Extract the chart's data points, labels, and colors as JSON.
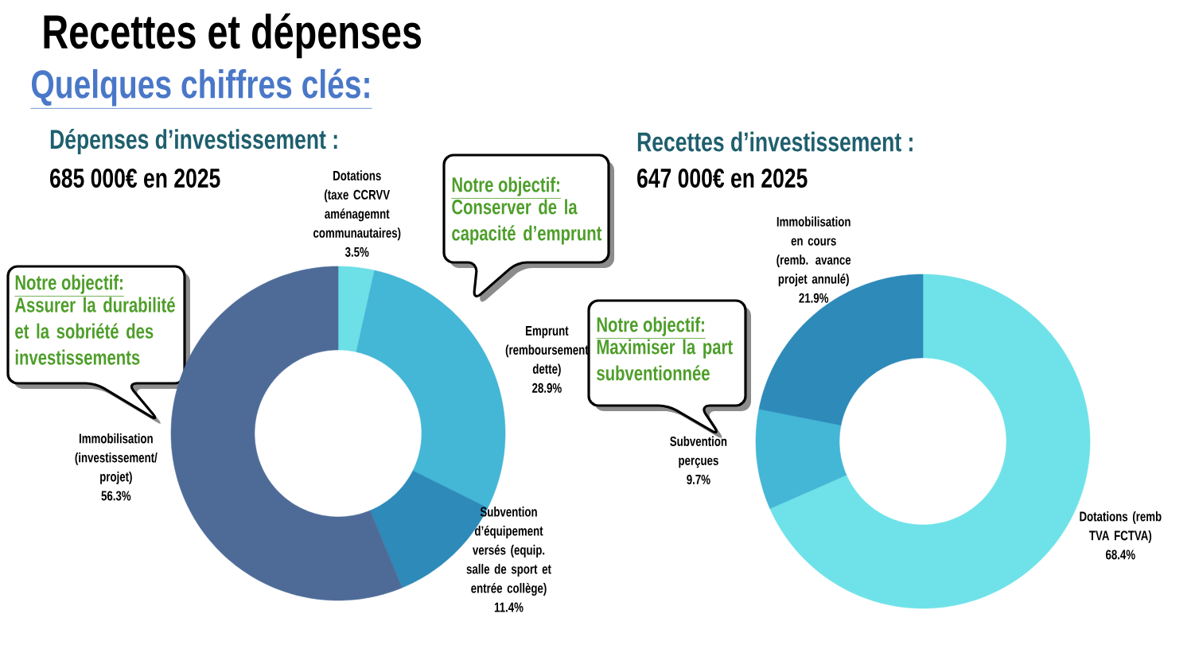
{
  "chart_data": [
    {
      "type": "donut",
      "title": "Dépenses d’investissement :",
      "subtitle": "685 000€ en 2025",
      "categories": [
        "Dotations (taxe CCRVV aménagemnt communautaires)",
        "Emprunt (remboursement dette)",
        "Subvention d’équipement versés (equip. salle de sport et entrée collège)",
        "Immobilisation (investissement/ projet)"
      ],
      "values": [
        3.5,
        28.9,
        11.4,
        56.3
      ],
      "colors": [
        "#6ddfe6",
        "#44b6d6",
        "#2d8ab9",
        "#4e6b98"
      ],
      "value_labels": [
        "3.5%",
        "28.9%",
        "11.4%",
        "56.3%"
      ],
      "annotations": [
        "Recettes et dépenses",
        "Quelques chiffres clés:",
        "Notre objectif:",
        "Assurer la durabilité et la sobriété des investissements",
        "Notre objectif:",
        "Conserver de la capacité d’emprunt"
      ]
    },
    {
      "type": "donut",
      "title": "Recettes d’investissement :",
      "subtitle": "647 000€ en 2025",
      "categories": [
        "Dotations (remb TVA FCTVA)",
        "Subvention perçues",
        "Immobilisation en cours (remb. avance projet annulé)"
      ],
      "values": [
        68.4,
        9.7,
        21.9
      ],
      "colors": [
        "#6ee2e8",
        "#44b6d6",
        "#2d8ab9"
      ],
      "value_labels": [
        "68.4%",
        "9.7%",
        "21.9%"
      ],
      "annotations": [
        "Notre objectif:",
        "Maximiser la part subventionnée"
      ]
    }
  ]
}
